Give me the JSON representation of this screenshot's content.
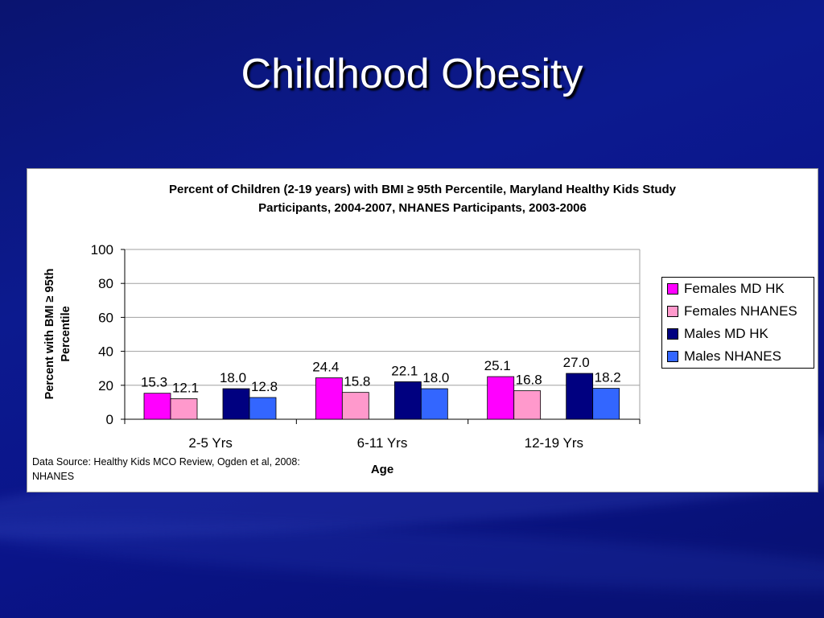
{
  "slide": {
    "title": "Childhood Obesity"
  },
  "source_note": "Data Source: Healthy Kids MCO Review, Ogden et al, 2008: NHANES",
  "chart_data": {
    "type": "bar",
    "title_line1": "Percent of Children (2-19 years) with BMI ≥ 95th Percentile, Maryland Healthy Kids Study",
    "title_line2": "Participants, 2004-2007, NHANES Participants, 2003-2006",
    "xlabel": "Age",
    "ylabel_line1": "Percent with BMI  ≥ 95th",
    "ylabel_line2": "Percentile",
    "ylim": [
      0,
      100
    ],
    "yticks": [
      0,
      20,
      40,
      60,
      80,
      100
    ],
    "grid": true,
    "legend_position": "right",
    "categories": [
      "2-5 Yrs",
      "6-11 Yrs",
      "12-19 Yrs"
    ],
    "series": [
      {
        "name": "Females MD HK",
        "color": "#ff00ff",
        "values": [
          15.3,
          24.4,
          25.1
        ],
        "labels": [
          "15.3",
          "24.4",
          "25.1"
        ]
      },
      {
        "name": "Females NHANES",
        "color": "#ff99cc",
        "values": [
          12.1,
          15.8,
          16.8
        ],
        "labels": [
          "12.1",
          "15.8",
          "16.8"
        ]
      },
      {
        "name": "Males MD HK",
        "color": "#000080",
        "values": [
          18.0,
          22.1,
          27.0
        ],
        "labels": [
          "18.0",
          "22.1",
          "27.0"
        ]
      },
      {
        "name": "Males NHANES",
        "color": "#3366ff",
        "values": [
          12.8,
          18.0,
          18.2
        ],
        "labels": [
          "12.8",
          "18.0",
          "18.2"
        ]
      }
    ]
  }
}
